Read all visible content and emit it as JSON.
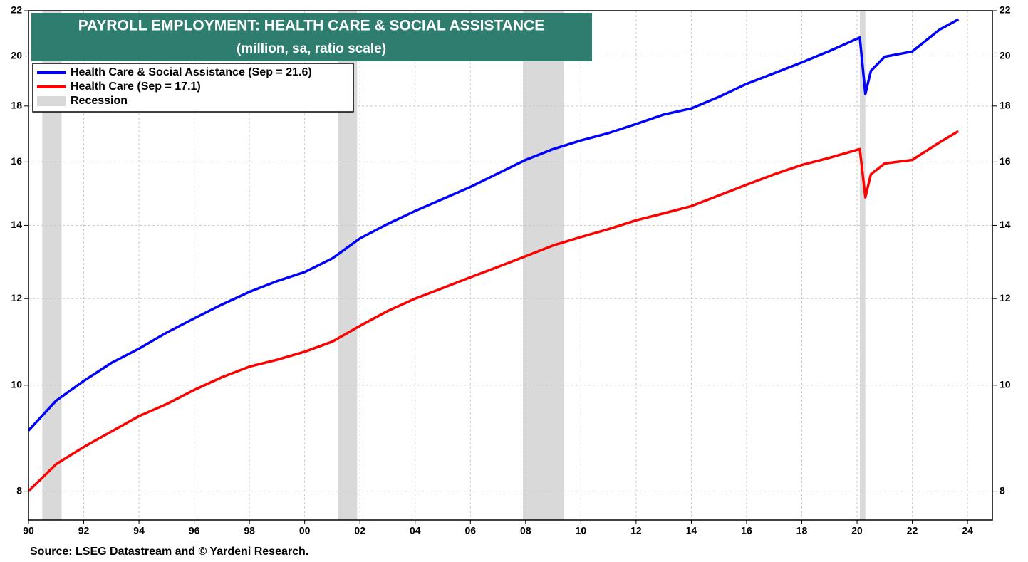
{
  "chart_data": {
    "type": "line",
    "title": "PAYROLL EMPLOYMENT: HEALTH CARE & SOCIAL ASSISTANCE",
    "subtitle": "(million, sa, ratio scale)",
    "source": "Source: LSEG Datastream and © Yardeni Research.",
    "log_scale": true,
    "grid": true,
    "legend_position": "upper left",
    "title_color": "#2e7d6e",
    "recession_label": "Recession",
    "recession_color": "#d9d9d9",
    "recessions": [
      [
        1990.5,
        1991.2
      ],
      [
        2001.2,
        2001.9
      ],
      [
        2007.9,
        2009.4
      ],
      [
        2020.1,
        2020.3
      ]
    ],
    "x": [
      1990,
      1991,
      1992,
      1993,
      1994,
      1995,
      1996,
      1997,
      1998,
      1999,
      2000,
      2001,
      2002,
      2003,
      2004,
      2005,
      2006,
      2007,
      2008,
      2009,
      2010,
      2011,
      2012,
      2013,
      2014,
      2015,
      2016,
      2017,
      2018,
      2019,
      2020.1,
      2020.3,
      2020.5,
      2021,
      2022,
      2023,
      2023.67
    ],
    "series": [
      {
        "name": "Health Care & Social Assistance (Sep = 21.6)",
        "color": "#0000ff",
        "values": [
          9.09,
          9.68,
          10.09,
          10.48,
          10.8,
          11.17,
          11.51,
          11.85,
          12.17,
          12.45,
          12.69,
          13.06,
          13.62,
          14.04,
          14.43,
          14.8,
          15.18,
          15.62,
          16.07,
          16.44,
          16.74,
          17.0,
          17.33,
          17.68,
          17.91,
          18.35,
          18.86,
          19.29,
          19.73,
          20.21,
          20.79,
          18.46,
          19.38,
          19.97,
          20.19,
          21.15,
          21.6
        ]
      },
      {
        "name": "Health Care (Sep = 17.1)",
        "color": "#ff0000",
        "values": [
          8.0,
          8.47,
          8.78,
          9.07,
          9.37,
          9.61,
          9.9,
          10.17,
          10.4,
          10.55,
          10.73,
          10.96,
          11.33,
          11.69,
          12.0,
          12.27,
          12.55,
          12.83,
          13.12,
          13.42,
          13.66,
          13.89,
          14.15,
          14.36,
          14.58,
          14.91,
          15.25,
          15.59,
          15.9,
          16.14,
          16.44,
          14.85,
          15.59,
          15.95,
          16.07,
          16.68,
          17.07
        ]
      }
    ],
    "xlim": [
      1990,
      2024.9
    ],
    "xticks": [
      {
        "value": 1990,
        "label": "90"
      },
      {
        "value": 1992,
        "label": "92"
      },
      {
        "value": 1994,
        "label": "94"
      },
      {
        "value": 1996,
        "label": "96"
      },
      {
        "value": 1998,
        "label": "98"
      },
      {
        "value": 2000,
        "label": "00"
      },
      {
        "value": 2002,
        "label": "02"
      },
      {
        "value": 2004,
        "label": "04"
      },
      {
        "value": 2006,
        "label": "06"
      },
      {
        "value": 2008,
        "label": "08"
      },
      {
        "value": 2010,
        "label": "10"
      },
      {
        "value": 2012,
        "label": "12"
      },
      {
        "value": 2014,
        "label": "14"
      },
      {
        "value": 2016,
        "label": "16"
      },
      {
        "value": 2018,
        "label": "18"
      },
      {
        "value": 2020,
        "label": "20"
      },
      {
        "value": 2022,
        "label": "22"
      },
      {
        "value": 2024,
        "label": "24"
      }
    ],
    "ylim": [
      7.53,
      22
    ],
    "yticks": [
      8,
      10,
      12,
      14,
      16,
      18,
      20,
      22
    ]
  }
}
